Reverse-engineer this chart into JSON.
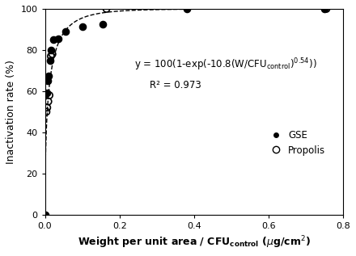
{
  "gse_x": [
    0.0,
    0.005,
    0.008,
    0.01,
    0.013,
    0.016,
    0.022,
    0.035,
    0.055,
    0.1,
    0.155,
    0.38,
    0.75
  ],
  "gse_y": [
    0.0,
    59.0,
    65.0,
    67.5,
    75.0,
    80.0,
    85.0,
    85.5,
    89.0,
    91.5,
    92.5,
    100.0,
    100.0
  ],
  "propolis_x": [
    0.004,
    0.006,
    0.009,
    0.012,
    0.016,
    0.02,
    0.165,
    0.755
  ],
  "propolis_y": [
    50.0,
    52.0,
    55.0,
    58.0,
    77.0,
    78.0,
    100.0,
    100.0
  ],
  "r_squared": "R² = 0.973",
  "ylabel": "Inactivation rate (%)",
  "xlim": [
    0,
    0.8
  ],
  "ylim": [
    0,
    100
  ],
  "xticks": [
    0,
    0.2,
    0.4,
    0.6,
    0.8
  ],
  "yticks": [
    0,
    20,
    40,
    60,
    80,
    100
  ],
  "legend_gse": "GSE",
  "legend_propolis": "Propolis",
  "background": "#ffffff",
  "eq_fontsize": 8.5,
  "axis_fontsize": 9
}
